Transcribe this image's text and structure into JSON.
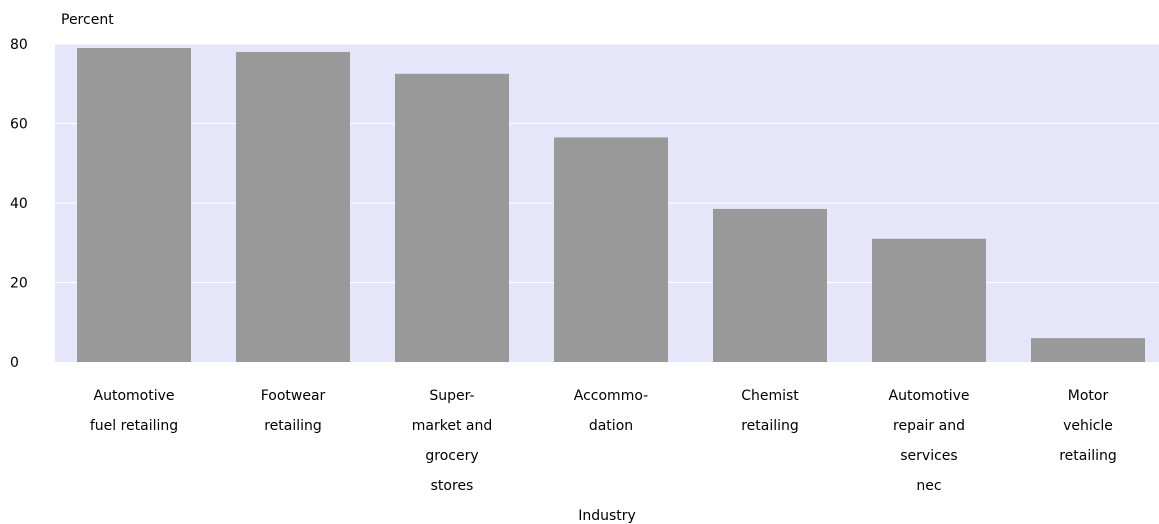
{
  "chart_data": {
    "type": "bar",
    "ylabel": "Percent",
    "xlabel": "Industry",
    "ylim": [
      0,
      80
    ],
    "yticks": [
      0,
      20,
      40,
      60,
      80
    ],
    "grid": true,
    "colors": {
      "plot_bg": "#e6e6fa",
      "bar": "#999999",
      "grid": "#ffffff"
    },
    "categories": [
      [
        "Automotive",
        "fuel retailing"
      ],
      [
        "Footwear",
        "retailing"
      ],
      [
        "Super-",
        "market and",
        "grocery",
        "stores"
      ],
      [
        "Accommo-",
        "dation"
      ],
      [
        "Chemist",
        "retailing"
      ],
      [
        "Automotive",
        "repair and",
        "services",
        "nec"
      ],
      [
        "Motor",
        "vehicle",
        "retailing"
      ]
    ],
    "values": [
      79,
      78,
      72.5,
      56.5,
      38.5,
      31,
      6
    ]
  }
}
